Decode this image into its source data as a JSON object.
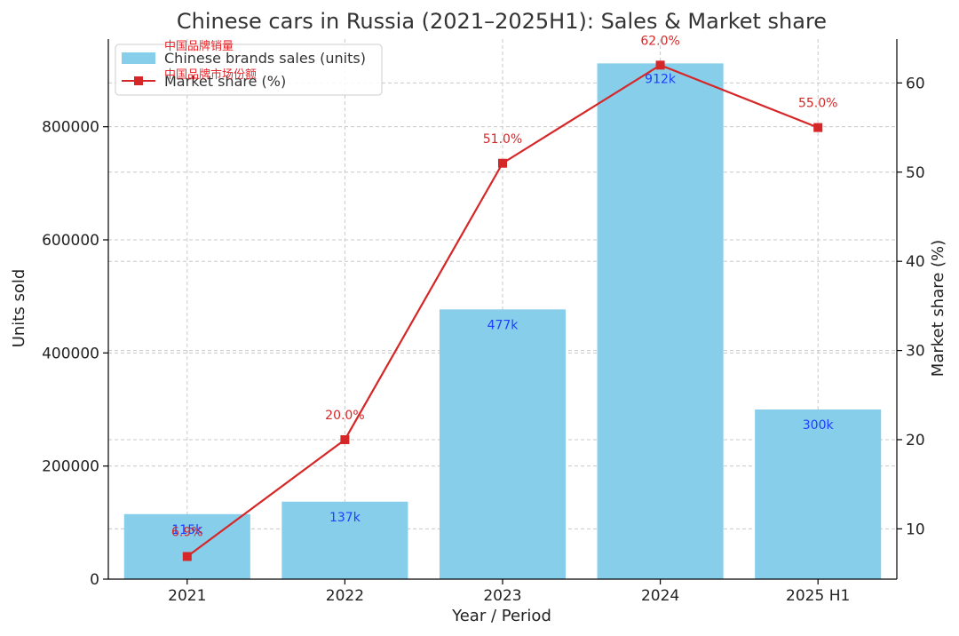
{
  "chart_data": {
    "type": "bar",
    "title": "Chinese cars in Russia (2021–2025H1): Sales & Market share",
    "xlabel": "Year / Period",
    "ylabel": "Units sold",
    "y2label": "Market share (%)",
    "categories": [
      "2021",
      "2022",
      "2023",
      "2024",
      "2025 H1"
    ],
    "ylim": [
      0,
      955000
    ],
    "y2lim": [
      4.36,
      64.92
    ],
    "yticks": [
      0,
      200000,
      400000,
      600000,
      800000
    ],
    "y2ticks": [
      10,
      20,
      30,
      40,
      50,
      60
    ],
    "grid": true,
    "legend_position": "top-left",
    "series": [
      {
        "name": "Chinese brands sales (units)",
        "alt_name": "中国品牌销量",
        "type": "bar",
        "axis": "left",
        "color": "#87ceeb",
        "values": [
          115000,
          137000,
          477000,
          912000,
          300000
        ],
        "labels": [
          "115k",
          "137k",
          "477k",
          "912k",
          "300k"
        ]
      },
      {
        "name": "Market share (%)",
        "alt_name": "中国品牌市场份额",
        "type": "line",
        "axis": "right",
        "marker": "square",
        "color": "#d62728",
        "values": [
          6.9,
          20.0,
          51.0,
          62.0,
          55.0
        ],
        "labels": [
          "6.9%",
          "20.0%",
          "51.0%",
          "62.0%",
          "55.0%"
        ]
      }
    ]
  }
}
